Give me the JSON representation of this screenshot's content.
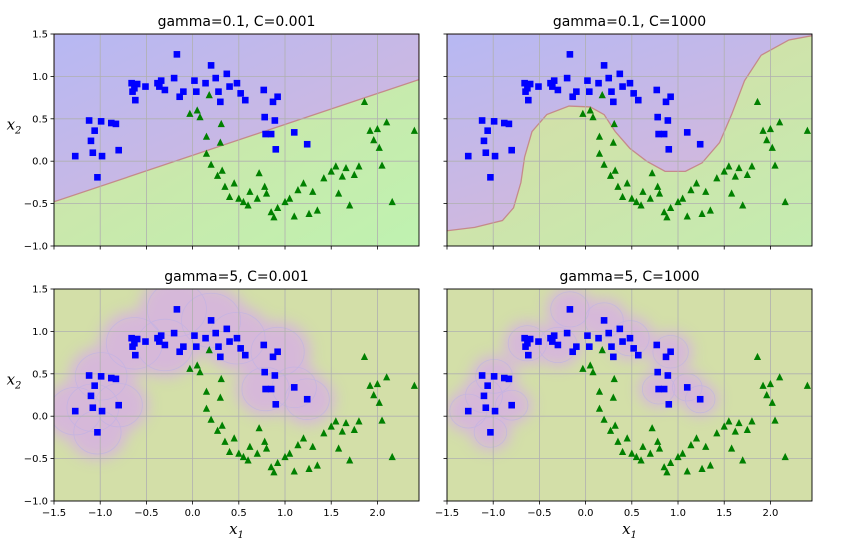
{
  "chart_data": [
    {
      "type": "scatter",
      "title": "gamma=0.1, C=0.001",
      "xlabel": "",
      "ylabel": "x_2",
      "xlim": [
        -1.5,
        2.45
      ],
      "ylim": [
        -1.0,
        1.5
      ],
      "regime": "linear"
    },
    {
      "type": "scatter",
      "title": "gamma=0.1, C=1000",
      "xlabel": "",
      "ylabel": "",
      "xlim": [
        -1.5,
        2.45
      ],
      "ylim": [
        -1.0,
        1.5
      ],
      "regime": "smooth"
    },
    {
      "type": "scatter",
      "title": "gamma=5, C=0.001",
      "xlabel": "x_1",
      "ylabel": "x_2",
      "xlim": [
        -1.5,
        2.45
      ],
      "ylim": [
        -1.0,
        1.5
      ],
      "regime": "band"
    },
    {
      "type": "scatter",
      "title": "gamma=5, C=1000",
      "xlabel": "x_1",
      "ylabel": "",
      "xlim": [
        -1.5,
        2.45
      ],
      "ylim": [
        -1.0,
        1.5
      ],
      "regime": "tight"
    }
  ],
  "axes": {
    "xticks": [
      -1.5,
      -1.0,
      -0.5,
      0.0,
      0.5,
      1.0,
      1.5,
      2.0
    ],
    "xtick_labels": [
      "−1.5",
      "−1.0",
      "−0.5",
      "0.0",
      "0.5",
      "1.0",
      "1.5",
      "2.0"
    ],
    "yticks": [
      -1.0,
      -0.5,
      0.0,
      0.5,
      1.0,
      1.5
    ],
    "ytick_labels": [
      "−1.0",
      "−0.5",
      "0.0",
      "0.5",
      "1.0",
      "1.5"
    ],
    "grid": true
  },
  "series": [
    {
      "marker": "square",
      "color": "#0000ff",
      "points": [
        [
          -1.27,
          0.06
        ],
        [
          -1.12,
          0.48
        ],
        [
          -1.1,
          0.24
        ],
        [
          -1.06,
          0.36
        ],
        [
          -1.08,
          0.1
        ],
        [
          -1.03,
          -0.19
        ],
        [
          -0.99,
          0.47
        ],
        [
          -0.98,
          0.06
        ],
        [
          -0.88,
          0.45
        ],
        [
          -0.83,
          0.44
        ],
        [
          -0.8,
          0.13
        ],
        [
          -0.66,
          0.92
        ],
        [
          -0.65,
          0.82
        ],
        [
          -0.63,
          0.86
        ],
        [
          -0.62,
          0.72
        ],
        [
          -0.6,
          0.91
        ],
        [
          -0.51,
          0.88
        ],
        [
          -0.38,
          0.92
        ],
        [
          -0.36,
          0.88
        ],
        [
          -0.34,
          0.95
        ],
        [
          -0.3,
          0.84
        ],
        [
          -0.2,
          0.98
        ],
        [
          -0.17,
          1.26
        ],
        [
          -0.14,
          0.76
        ],
        [
          -0.1,
          0.82
        ],
        [
          0.02,
          0.95
        ],
        [
          0.04,
          0.82
        ],
        [
          0.14,
          0.92
        ],
        [
          0.2,
          1.13
        ],
        [
          0.25,
          0.98
        ],
        [
          0.28,
          0.82
        ],
        [
          0.3,
          0.7
        ],
        [
          0.37,
          1.03
        ],
        [
          0.4,
          0.88
        ],
        [
          0.48,
          0.92
        ],
        [
          0.52,
          0.8
        ],
        [
          0.57,
          0.72
        ],
        [
          0.77,
          0.84
        ],
        [
          0.78,
          0.52
        ],
        [
          0.79,
          0.32
        ],
        [
          0.85,
          0.32
        ],
        [
          0.87,
          0.7
        ],
        [
          0.89,
          0.48
        ],
        [
          0.9,
          0.14
        ],
        [
          0.92,
          0.76
        ],
        [
          1.1,
          0.34
        ],
        [
          1.24,
          0.2
        ]
      ]
    },
    {
      "marker": "triangle",
      "color": "#008000",
      "points": [
        [
          -0.03,
          0.56
        ],
        [
          0.05,
          0.6
        ],
        [
          0.08,
          0.52
        ],
        [
          0.18,
          0.78
        ],
        [
          0.15,
          0.29
        ],
        [
          0.15,
          0.09
        ],
        [
          0.2,
          -0.04
        ],
        [
          0.3,
          0.22
        ],
        [
          0.31,
          0.44
        ],
        [
          0.27,
          -0.17
        ],
        [
          0.32,
          -0.11
        ],
        [
          0.35,
          -0.3
        ],
        [
          0.4,
          -0.42
        ],
        [
          0.45,
          -0.26
        ],
        [
          0.5,
          -0.44
        ],
        [
          0.55,
          -0.48
        ],
        [
          0.6,
          -0.52
        ],
        [
          0.62,
          -0.36
        ],
        [
          0.7,
          -0.44
        ],
        [
          0.72,
          -0.14
        ],
        [
          0.78,
          -0.3
        ],
        [
          0.8,
          -0.38
        ],
        [
          0.85,
          -0.6
        ],
        [
          0.88,
          -0.66
        ],
        [
          0.92,
          -0.55
        ],
        [
          1.0,
          -0.48
        ],
        [
          1.05,
          -0.44
        ],
        [
          1.1,
          -0.65
        ],
        [
          1.14,
          -0.34
        ],
        [
          1.2,
          -0.26
        ],
        [
          1.26,
          -0.62
        ],
        [
          1.3,
          -0.36
        ],
        [
          1.35,
          -0.58
        ],
        [
          1.42,
          -0.2
        ],
        [
          1.5,
          -0.12
        ],
        [
          1.55,
          -0.06
        ],
        [
          1.58,
          -0.38
        ],
        [
          1.62,
          -0.18
        ],
        [
          1.66,
          -0.08
        ],
        [
          1.7,
          -0.52
        ],
        [
          1.75,
          -0.16
        ],
        [
          1.8,
          -0.06
        ],
        [
          1.86,
          0.7
        ],
        [
          1.92,
          0.36
        ],
        [
          1.96,
          0.25
        ],
        [
          2.0,
          0.38
        ],
        [
          2.02,
          0.16
        ],
        [
          2.05,
          -0.05
        ],
        [
          2.1,
          0.46
        ],
        [
          2.16,
          -0.48
        ],
        [
          2.4,
          0.36
        ]
      ]
    }
  ]
}
